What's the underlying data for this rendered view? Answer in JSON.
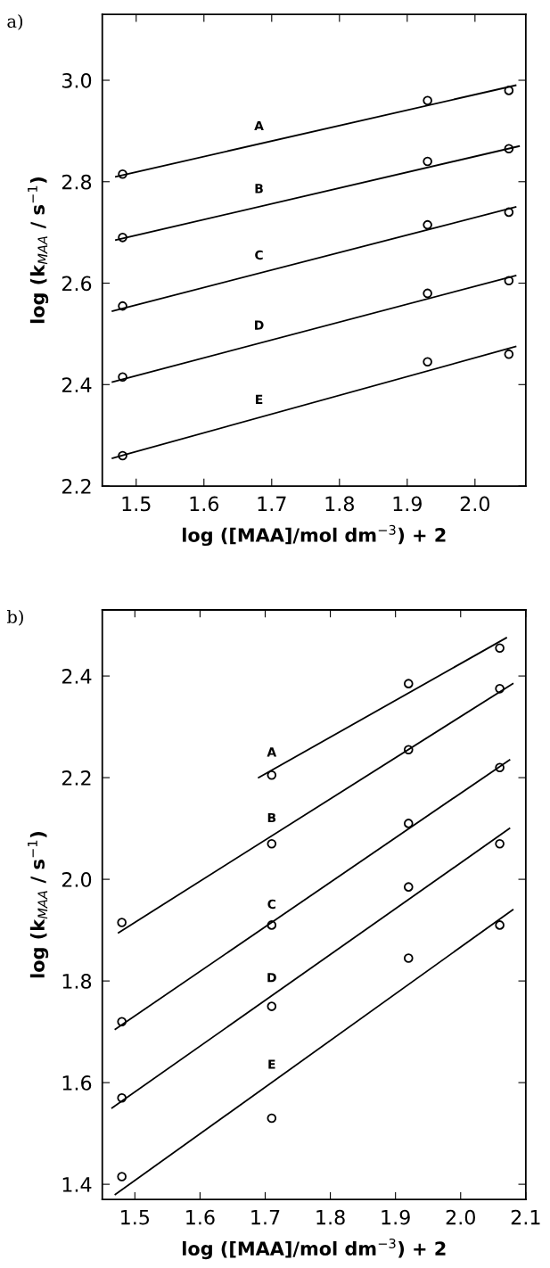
{
  "chart_data": [
    {
      "type": "scatter",
      "title": "a)",
      "xlabel": "log ([MAA]/mol dm$^{−3}$) + 2",
      "ylabel": "log (k$_{MAA}$ / s$^{−1}$)",
      "xlim": [
        1.45,
        2.075
      ],
      "xticks": [
        1.5,
        1.6,
        1.7,
        1.8,
        1.9,
        {
          "value": 2.0,
          "label": "2.0"
        }
      ],
      "ylim": [
        2.2,
        3.13
      ],
      "yticks": [
        2.2,
        2.4,
        2.6,
        2.8,
        {
          "value": 3.0,
          "label": "3.0"
        }
      ],
      "grid": false,
      "legend": false,
      "series": [
        {
          "color": "#000000",
          "marker": "circle",
          "x": [
            1.48,
            1.93,
            2.05
          ],
          "values": [
            2.815,
            2.96,
            2.98
          ]
        },
        {
          "color": "#000000",
          "marker": "circle",
          "x": [
            1.48,
            1.93,
            2.05
          ],
          "values": [
            2.69,
            2.84,
            2.865
          ]
        },
        {
          "color": "#000000",
          "marker": "circle",
          "x": [
            1.48,
            1.93,
            2.05
          ],
          "values": [
            2.555,
            2.715,
            2.74
          ]
        },
        {
          "color": "#000000",
          "marker": "circle",
          "x": [
            1.48,
            1.93,
            2.05
          ],
          "values": [
            2.415,
            2.58,
            2.605
          ]
        },
        {
          "color": "#000000",
          "marker": "circle",
          "x": [
            1.48,
            1.93,
            2.05
          ],
          "values": [
            2.26,
            2.445,
            2.46
          ]
        },
        {
          "type": "line",
          "name": "A",
          "color": "#000000",
          "x": [
            1.47,
            2.06
          ],
          "values": [
            2.81,
            2.99
          ]
        },
        {
          "type": "line",
          "name": "B",
          "color": "#000000",
          "x": [
            1.47,
            2.065
          ],
          "values": [
            2.685,
            2.87
          ]
        },
        {
          "type": "line",
          "name": "C",
          "color": "#000000",
          "x": [
            1.465,
            2.06
          ],
          "values": [
            2.545,
            2.75
          ]
        },
        {
          "type": "line",
          "name": "D",
          "color": "#000000",
          "x": [
            1.465,
            2.06
          ],
          "values": [
            2.405,
            2.615
          ]
        },
        {
          "type": "line",
          "name": "E",
          "color": "#000000",
          "x": [
            1.465,
            2.06
          ],
          "values": [
            2.255,
            2.475
          ]
        }
      ]
    },
    {
      "type": "scatter",
      "title": "b)",
      "xlabel": "log ([MAA]/mol dm$^{−3}$) + 2",
      "ylabel": "log (k$_{MAA}$ / s$^{−1}$)",
      "xlim": [
        1.45,
        2.1
      ],
      "xticks": [
        1.5,
        1.6,
        1.7,
        1.8,
        1.9,
        {
          "value": 2.0,
          "label": "2.0"
        },
        2.1
      ],
      "ylim": [
        1.37,
        2.53
      ],
      "yticks": [
        1.4,
        1.6,
        1.8,
        {
          "value": 2.0,
          "label": "2.0"
        },
        2.2,
        2.4
      ],
      "grid": false,
      "legend": false,
      "series": [
        {
          "color": "#000000",
          "marker": "circle",
          "x": [
            1.71,
            1.92,
            2.06
          ],
          "values": [
            2.205,
            2.385,
            2.455
          ]
        },
        {
          "color": "#000000",
          "marker": "circle",
          "x": [
            1.48,
            1.71,
            1.92,
            2.06
          ],
          "values": [
            1.915,
            2.07,
            2.255,
            2.375
          ]
        },
        {
          "color": "#000000",
          "marker": "circle",
          "x": [
            1.48,
            1.71,
            1.92,
            2.06
          ],
          "values": [
            1.72,
            1.91,
            2.11,
            2.22
          ]
        },
        {
          "color": "#000000",
          "marker": "circle",
          "x": [
            1.48,
            1.71,
            1.92,
            2.06
          ],
          "values": [
            1.57,
            1.75,
            1.985,
            2.07
          ]
        },
        {
          "color": "#000000",
          "marker": "circle",
          "x": [
            1.48,
            1.71,
            1.92,
            2.06
          ],
          "values": [
            1.415,
            1.53,
            1.845,
            1.91
          ]
        },
        {
          "type": "line",
          "name": "A",
          "color": "#000000",
          "x": [
            1.69,
            2.07
          ],
          "values": [
            2.2,
            2.475
          ]
        },
        {
          "type": "line",
          "name": "B",
          "color": "#000000",
          "x": [
            1.475,
            2.08
          ],
          "values": [
            1.895,
            2.385
          ]
        },
        {
          "type": "line",
          "name": "C",
          "color": "#000000",
          "x": [
            1.47,
            2.075
          ],
          "values": [
            1.705,
            2.235
          ]
        },
        {
          "type": "line",
          "name": "D",
          "color": "#000000",
          "x": [
            1.465,
            2.075
          ],
          "values": [
            1.55,
            2.1
          ]
        },
        {
          "type": "line",
          "name": "E",
          "color": "#000000",
          "x": [
            1.47,
            2.08
          ],
          "values": [
            1.38,
            1.94
          ]
        }
      ]
    }
  ]
}
